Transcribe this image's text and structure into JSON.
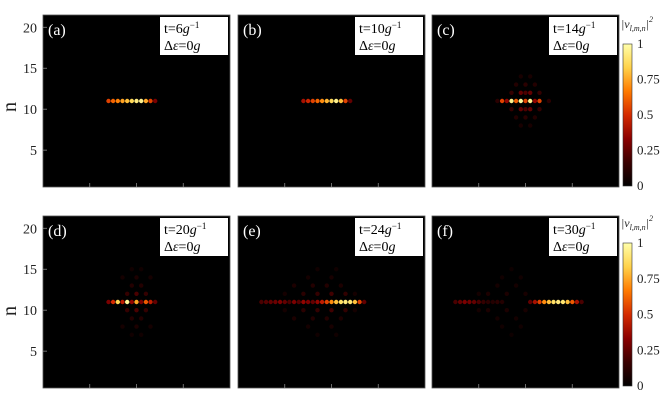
{
  "figure": {
    "ylabel": "n",
    "y_ticks": [
      "5",
      "10",
      "15",
      "20"
    ],
    "colorbar_label": "|v",
    "colorbar_label_sub": "l,m,n",
    "colorbar_label_sup": "2",
    "colorbar_ticks": [
      "0",
      "0.25",
      "0.5",
      "0.75",
      "1"
    ],
    "colormap": [
      "#000000",
      "#3a0000",
      "#8b0000",
      "#d42a00",
      "#ff7a00",
      "#ffd24a",
      "#ffffaa"
    ]
  },
  "chart_data": [
    {
      "type": "heatmap",
      "label": "(a)",
      "t": "6",
      "de": "0",
      "ylim": [
        1,
        21
      ],
      "points": [
        [
          -6,
          11,
          0.55
        ],
        [
          -5,
          11,
          0.62
        ],
        [
          -4,
          11,
          0.68
        ],
        [
          -3,
          11,
          0.74
        ],
        [
          -2,
          11,
          0.8
        ],
        [
          -1,
          11,
          0.86
        ],
        [
          0,
          11,
          0.93
        ],
        [
          1,
          11,
          0.95
        ],
        [
          2,
          11,
          0.75
        ],
        [
          3,
          11,
          0.55
        ],
        [
          4,
          11,
          0.3
        ]
      ]
    },
    {
      "type": "heatmap",
      "label": "(b)",
      "t": "10",
      "de": "0",
      "ylim": [
        1,
        21
      ],
      "points": [
        [
          -6,
          11,
          0.4
        ],
        [
          -5,
          11,
          0.48
        ],
        [
          -4,
          11,
          0.55
        ],
        [
          -3,
          11,
          0.62
        ],
        [
          -2,
          11,
          0.7
        ],
        [
          -1,
          11,
          0.78
        ],
        [
          0,
          11,
          0.86
        ],
        [
          1,
          11,
          0.95
        ],
        [
          2,
          11,
          0.8
        ],
        [
          3,
          11,
          0.55
        ],
        [
          4,
          11,
          0.25
        ]
      ]
    },
    {
      "type": "heatmap",
      "label": "(c)",
      "t": "14",
      "de": "0",
      "ylim": [
        1,
        21
      ],
      "points": [
        [
          -5,
          11,
          0.55
        ],
        [
          -4,
          11,
          0.35
        ],
        [
          -3,
          11,
          0.95
        ],
        [
          -2,
          11,
          0.6
        ],
        [
          -1,
          11,
          0.98
        ],
        [
          0,
          11,
          0.55
        ],
        [
          1,
          11,
          0.95
        ],
        [
          2,
          11,
          0.35
        ],
        [
          3,
          11,
          0.55
        ],
        [
          -1,
          12,
          0.25
        ],
        [
          0,
          12,
          0.2
        ],
        [
          1,
          12,
          0.25
        ],
        [
          -1,
          10,
          0.25
        ],
        [
          0,
          10,
          0.2
        ],
        [
          1,
          10,
          0.25
        ],
        [
          -3,
          12,
          0.15
        ],
        [
          3,
          12,
          0.15
        ],
        [
          -3,
          10,
          0.15
        ],
        [
          3,
          10,
          0.15
        ],
        [
          -2,
          13,
          0.1
        ],
        [
          0,
          13,
          0.12
        ],
        [
          2,
          13,
          0.1
        ],
        [
          -2,
          9,
          0.1
        ],
        [
          0,
          9,
          0.12
        ],
        [
          2,
          9,
          0.1
        ],
        [
          -1,
          14,
          0.07
        ],
        [
          1,
          14,
          0.07
        ],
        [
          -1,
          8,
          0.07
        ],
        [
          1,
          8,
          0.07
        ],
        [
          -6,
          11,
          0.12
        ],
        [
          5,
          11,
          0.12
        ]
      ]
    },
    {
      "type": "heatmap",
      "label": "(d)",
      "t": "20",
      "de": "0",
      "ylim": [
        1,
        21
      ],
      "points": [
        [
          -6,
          11,
          0.3
        ],
        [
          -5,
          11,
          0.5
        ],
        [
          -4,
          11,
          0.85
        ],
        [
          -3,
          11,
          0.45
        ],
        [
          -2,
          11,
          0.97
        ],
        [
          -1,
          11,
          0.35
        ],
        [
          0,
          11,
          0.75
        ],
        [
          1,
          11,
          0.3
        ],
        [
          2,
          11,
          0.6
        ],
        [
          3,
          11,
          0.45
        ],
        [
          4,
          11,
          0.25
        ],
        [
          -2,
          12,
          0.15
        ],
        [
          0,
          12,
          0.2
        ],
        [
          2,
          12,
          0.15
        ],
        [
          -2,
          10,
          0.15
        ],
        [
          0,
          10,
          0.2
        ],
        [
          2,
          10,
          0.15
        ],
        [
          -1,
          13,
          0.1
        ],
        [
          1,
          13,
          0.1
        ],
        [
          -1,
          9,
          0.1
        ],
        [
          1,
          9,
          0.1
        ],
        [
          -3,
          14,
          0.06
        ],
        [
          0,
          14,
          0.08
        ],
        [
          3,
          14,
          0.06
        ],
        [
          -3,
          8,
          0.06
        ],
        [
          0,
          8,
          0.08
        ],
        [
          3,
          8,
          0.06
        ],
        [
          -1,
          15,
          0.05
        ],
        [
          1,
          15,
          0.05
        ],
        [
          -1,
          7,
          0.05
        ],
        [
          1,
          7,
          0.05
        ]
      ]
    },
    {
      "type": "heatmap",
      "label": "(e)",
      "t": "24",
      "de": "0",
      "ylim": [
        1,
        21
      ],
      "points": [
        [
          -15,
          11,
          0.2
        ],
        [
          -14,
          11,
          0.22
        ],
        [
          -13,
          11,
          0.25
        ],
        [
          -12,
          11,
          0.27
        ],
        [
          -11,
          11,
          0.3
        ],
        [
          -10,
          11,
          0.25
        ],
        [
          -9,
          11,
          0.2
        ],
        [
          -8,
          11,
          0.3
        ],
        [
          -7,
          11,
          0.22
        ],
        [
          -6,
          11,
          0.35
        ],
        [
          -5,
          11,
          0.3
        ],
        [
          -4,
          11,
          0.25
        ],
        [
          -3,
          11,
          0.35
        ],
        [
          -2,
          11,
          0.45
        ],
        [
          -1,
          11,
          0.55
        ],
        [
          0,
          11,
          0.7
        ],
        [
          1,
          11,
          0.8
        ],
        [
          2,
          11,
          0.88
        ],
        [
          3,
          11,
          0.92
        ],
        [
          4,
          11,
          0.9
        ],
        [
          5,
          11,
          0.8
        ],
        [
          6,
          11,
          0.55
        ],
        [
          7,
          11,
          0.25
        ],
        [
          -6,
          12,
          0.12
        ],
        [
          -3,
          12,
          0.15
        ],
        [
          0,
          12,
          0.18
        ],
        [
          3,
          12,
          0.14
        ],
        [
          -6,
          10,
          0.12
        ],
        [
          -3,
          10,
          0.15
        ],
        [
          0,
          10,
          0.18
        ],
        [
          3,
          10,
          0.14
        ],
        [
          -8,
          13,
          0.08
        ],
        [
          -4,
          13,
          0.1
        ],
        [
          -1,
          13,
          0.1
        ],
        [
          2,
          13,
          0.08
        ],
        [
          -8,
          9,
          0.08
        ],
        [
          -4,
          9,
          0.1
        ],
        [
          -1,
          9,
          0.1
        ],
        [
          2,
          9,
          0.08
        ],
        [
          -5,
          14,
          0.06
        ],
        [
          0,
          14,
          0.07
        ],
        [
          -5,
          8,
          0.06
        ],
        [
          0,
          8,
          0.07
        ],
        [
          -3,
          15,
          0.05
        ],
        [
          1,
          15,
          0.05
        ],
        [
          -3,
          7,
          0.05
        ],
        [
          1,
          7,
          0.05
        ],
        [
          -10,
          12,
          0.06
        ],
        [
          -10,
          10,
          0.06
        ],
        [
          5,
          12,
          0.06
        ],
        [
          5,
          10,
          0.06
        ]
      ]
    },
    {
      "type": "heatmap",
      "label": "(f)",
      "t": "30",
      "de": "0",
      "ylim": [
        1,
        21
      ],
      "points": [
        [
          -15,
          11,
          0.2
        ],
        [
          -14,
          11,
          0.25
        ],
        [
          -13,
          11,
          0.3
        ],
        [
          -12,
          11,
          0.28
        ],
        [
          -11,
          11,
          0.25
        ],
        [
          -10,
          11,
          0.2
        ],
        [
          -9,
          11,
          0.15
        ],
        [
          -8,
          11,
          0.12
        ],
        [
          -7,
          11,
          0.1
        ],
        [
          -6,
          11,
          0.12
        ],
        [
          -5,
          11,
          0.1
        ],
        [
          1,
          11,
          0.25
        ],
        [
          2,
          11,
          0.4
        ],
        [
          3,
          11,
          0.55
        ],
        [
          4,
          11,
          0.7
        ],
        [
          5,
          11,
          0.8
        ],
        [
          6,
          11,
          0.88
        ],
        [
          7,
          11,
          0.92
        ],
        [
          8,
          11,
          0.9
        ],
        [
          9,
          11,
          0.8
        ],
        [
          10,
          11,
          0.6
        ],
        [
          11,
          11,
          0.4
        ],
        [
          12,
          11,
          0.2
        ],
        [
          -8,
          12,
          0.08
        ],
        [
          -4,
          12,
          0.08
        ],
        [
          0,
          12,
          0.07
        ],
        [
          -8,
          10,
          0.08
        ],
        [
          -4,
          10,
          0.08
        ],
        [
          0,
          10,
          0.07
        ],
        [
          -6,
          13,
          0.06
        ],
        [
          -2,
          13,
          0.06
        ],
        [
          -6,
          9,
          0.06
        ],
        [
          -2,
          9,
          0.06
        ],
        [
          -5,
          14,
          0.05
        ],
        [
          -1,
          14,
          0.05
        ],
        [
          -5,
          8,
          0.05
        ],
        [
          -1,
          8,
          0.05
        ],
        [
          -10,
          12,
          0.06
        ],
        [
          -10,
          10,
          0.06
        ],
        [
          -3,
          15,
          0.04
        ],
        [
          -3,
          7,
          0.04
        ]
      ]
    }
  ]
}
